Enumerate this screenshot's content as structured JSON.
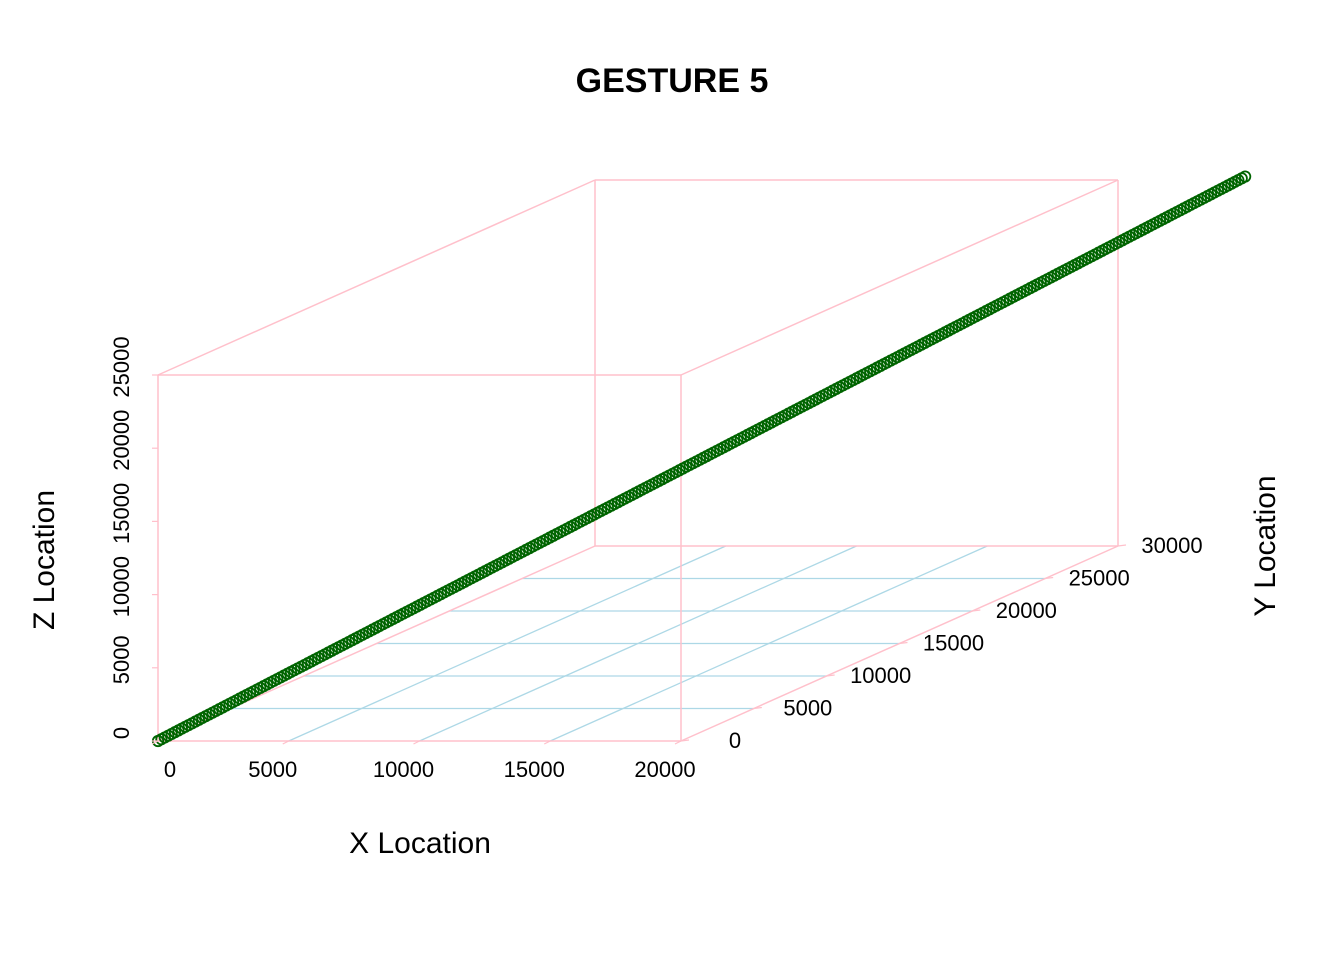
{
  "chart_data": {
    "type": "scatter3d",
    "title": "GESTURE 5",
    "xlabel": "X Location",
    "ylabel": "Y Location",
    "zlabel": "Z Location",
    "xlim": [
      0,
      20000
    ],
    "ylim": [
      0,
      30000
    ],
    "zlim": [
      0,
      25000
    ],
    "x_ticks": [
      "0",
      "5000",
      "10000",
      "15000",
      "20000"
    ],
    "y_ticks": [
      "0",
      "5000",
      "10000",
      "15000",
      "20000",
      "25000",
      "30000"
    ],
    "z_ticks": [
      "0",
      "5000",
      "10000",
      "15000",
      "20000",
      "25000"
    ],
    "series": [
      {
        "start": {
          "x": 0,
          "y": 0,
          "z": 0
        },
        "end": {
          "x": 26700,
          "y": 26700,
          "z": 26700
        },
        "n_points": 320
      }
    ],
    "grid": "on",
    "colors": {
      "points": "#006400",
      "box": "#FFC0CB",
      "grid": "#ADD8E6"
    }
  }
}
